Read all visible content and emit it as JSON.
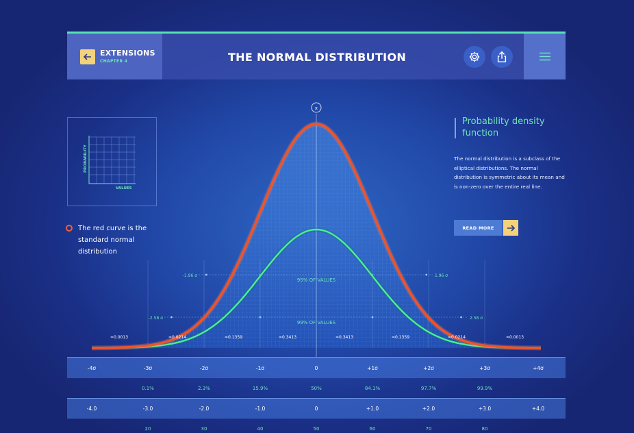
{
  "header": {
    "section_title": "EXTENSIONS",
    "section_sub": "CHAPTER 4",
    "title": "THE NORMAL DISTRIBUTION"
  },
  "mini_chart": {
    "y_label": "PROBABILITY",
    "x_label": "VALUES"
  },
  "legend_note": "The red curve is the standard normal distribution",
  "info": {
    "title": "Probability density function",
    "body": "The normal distribution is a subclass of the elliptical distributions. The normal distribution is symmetric about its mean and is non-zero over the entire real line.",
    "read_more": "READ MORE"
  },
  "colors": {
    "accent": "#58e3b5",
    "red_curve": "#f0532a",
    "green_curve": "#4cf08e",
    "yellow": "#f3d27a"
  },
  "chart_data": {
    "type": "line",
    "series": [
      {
        "name": "standard normal",
        "color": "#f0532a"
      },
      {
        "color": "#4cf08e"
      }
    ],
    "center_marker": "x",
    "band_labels": [
      {
        "label": "95% OF VALUES",
        "left": "-1.96 σ",
        "right": "1.96 σ"
      },
      {
        "label": "99% OF VALUES",
        "left": "-2.58 σ",
        "right": "2.58 σ"
      }
    ],
    "area_labels": [
      "≈0.0013",
      "≈0.0214",
      "≈0.1359",
      "≈0.3413",
      "≈0.3413",
      "≈0.1359",
      "≈0.0214",
      "≈0.0013"
    ],
    "sigma_labels": [
      "-4σ",
      "-3σ",
      "-2σ",
      "-1σ",
      "0",
      "+1σ",
      "+2σ",
      "+3σ",
      "+4σ"
    ],
    "cumulative": [
      "",
      "0.1%",
      "2.3%",
      "15.9%",
      "50%",
      "84.1%",
      "97.7%",
      "99.9%",
      ""
    ],
    "z_scores": [
      "-4.0",
      "-3.0",
      "-2.0",
      "-1.0",
      "0",
      "+1.0",
      "+2.0",
      "+3.0",
      "+4.0"
    ],
    "t_scores": [
      "",
      "20",
      "30",
      "40",
      "50",
      "60",
      "70",
      "80",
      ""
    ]
  }
}
